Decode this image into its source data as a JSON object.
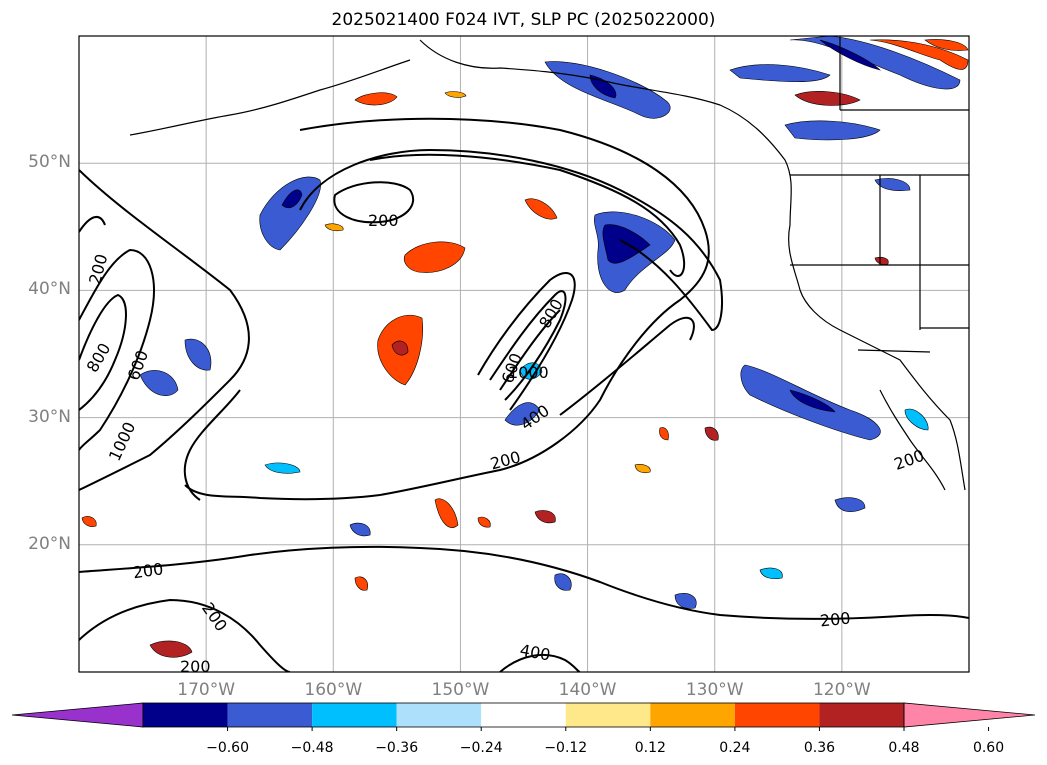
{
  "title": "2025021400 F024 IVT, SLP PC (2025022000)",
  "map": {
    "lon_range": [
      -180,
      -110
    ],
    "lat_range": [
      10,
      60
    ],
    "lat_ticks": [
      {
        "value": 50,
        "label": "50°N"
      },
      {
        "value": 40,
        "label": "40°N"
      },
      {
        "value": 30,
        "label": "30°N"
      },
      {
        "value": 20,
        "label": "20°N"
      }
    ],
    "lon_ticks": [
      {
        "value": -170,
        "label": "170°W"
      },
      {
        "value": -160,
        "label": "160°W"
      },
      {
        "value": -150,
        "label": "150°W"
      },
      {
        "value": -140,
        "label": "140°W"
      },
      {
        "value": -130,
        "label": "130°W"
      },
      {
        "value": -120,
        "label": "120°W"
      }
    ],
    "grid": true,
    "contour_labels": [
      "200",
      "200",
      "200",
      "200",
      "200",
      "200",
      "200",
      "200",
      "400",
      "400",
      "600",
      "600",
      "800",
      "800",
      "1000",
      "1000"
    ]
  },
  "colorbar": {
    "ticks": [
      "−0.60",
      "−0.48",
      "−0.36",
      "−0.24",
      "−0.12",
      "0.12",
      "0.24",
      "0.36",
      "0.48",
      "0.60"
    ],
    "colors": [
      "#9932CC",
      "#00008B",
      "#3A5BD1",
      "#00BFFF",
      "#ADE0FA",
      "#FFFFFF",
      "#FFE88A",
      "#FFA500",
      "#FF4500",
      "#B22222",
      "#FF85A8"
    ],
    "extend": "both"
  }
}
